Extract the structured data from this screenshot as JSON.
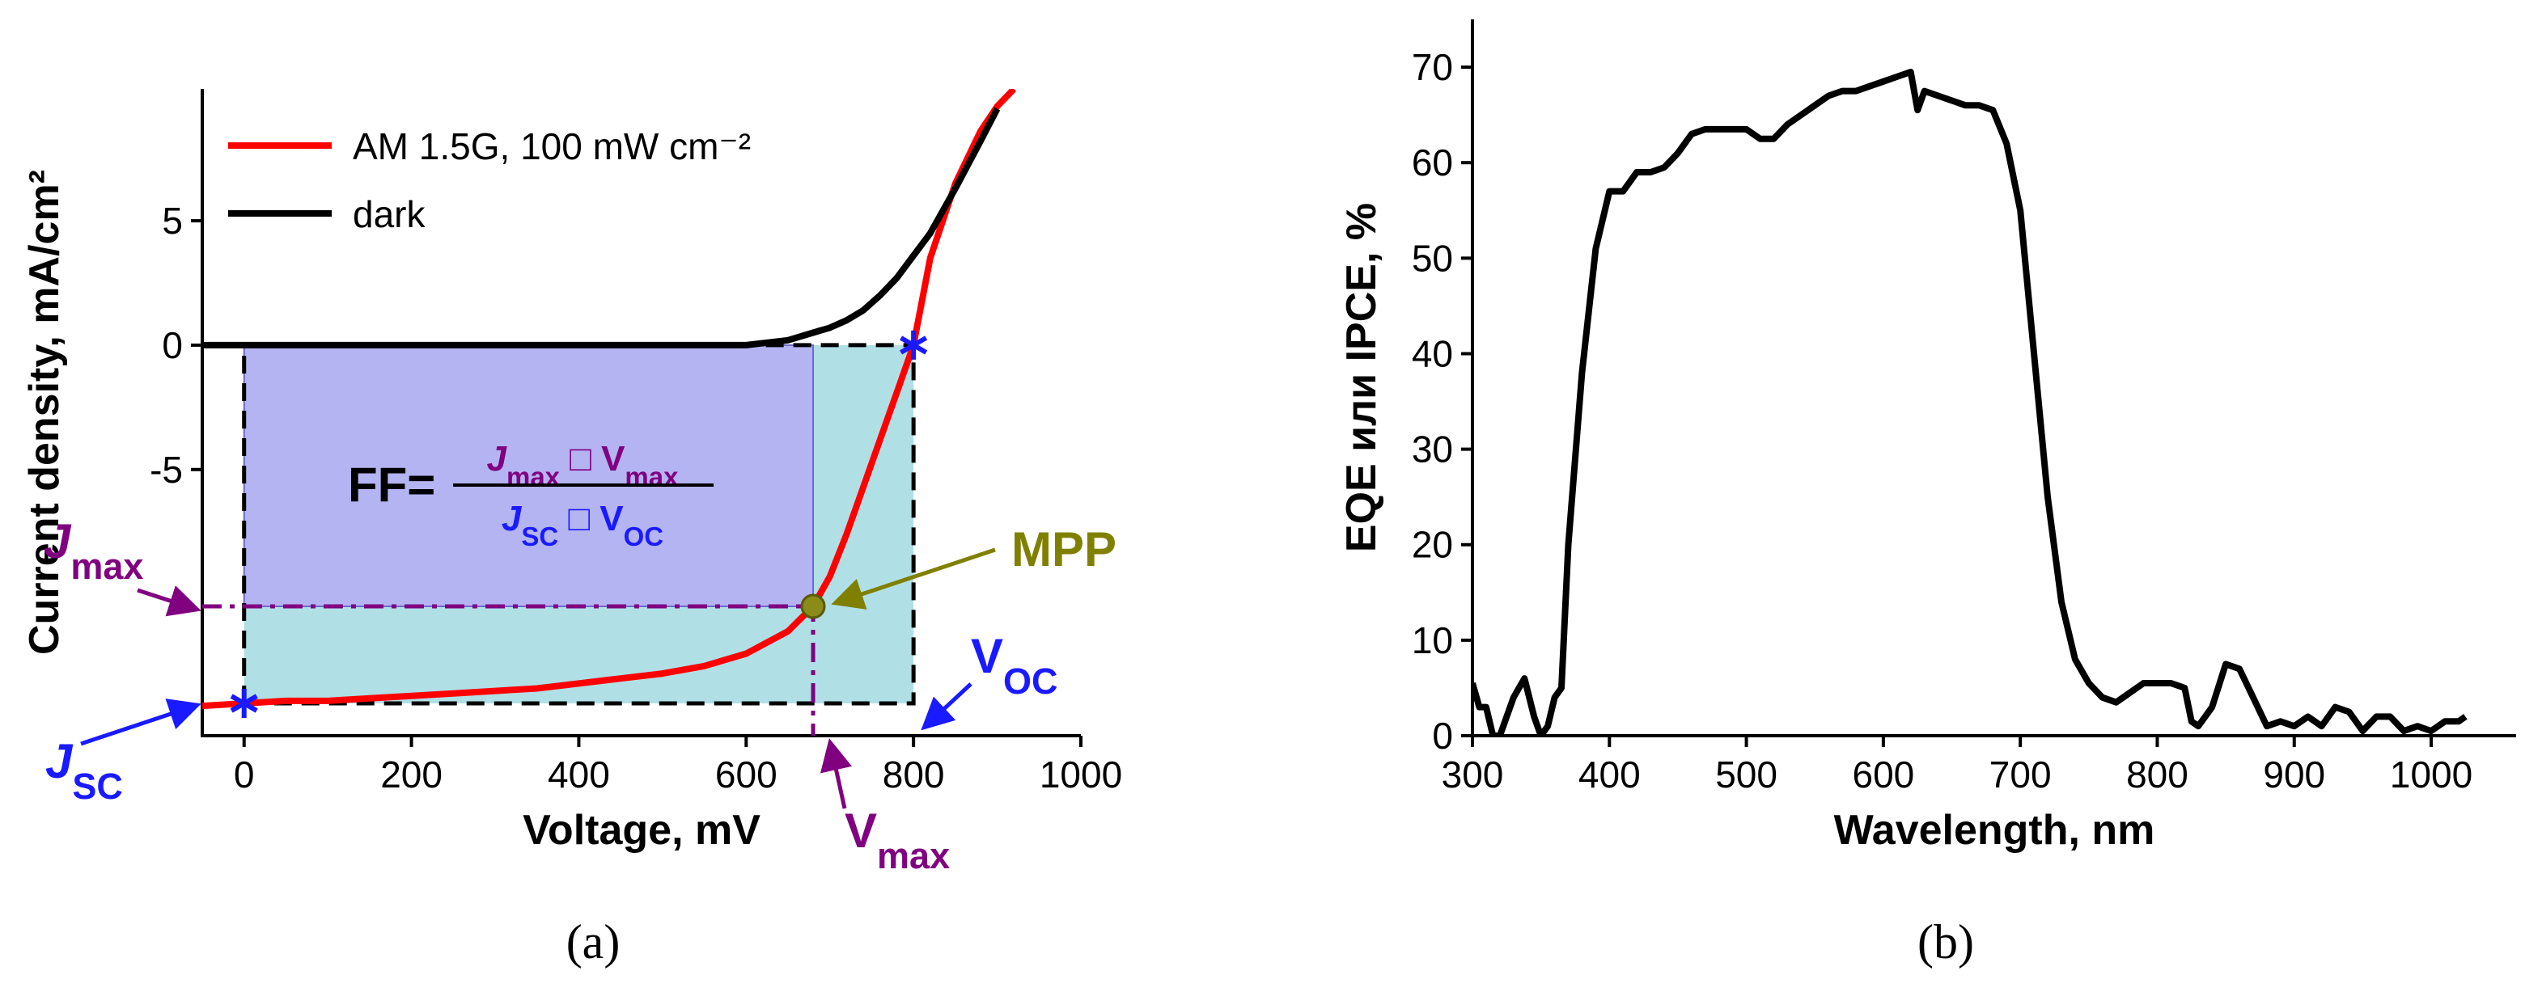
{
  "chart_data": [
    {
      "type": "line",
      "xlabel": "Voltage, mV",
      "ylabel": "Current density, mA/cm²",
      "panel": "(a)",
      "xlim": [
        -50,
        1000
      ],
      "xticks": [
        0,
        200,
        400,
        600,
        800,
        1000
      ],
      "ylim": [
        -15.7,
        10.3
      ],
      "yticks": [
        -5,
        0,
        5
      ],
      "legend": "top-left",
      "x": [
        -50,
        0,
        50,
        100,
        150,
        200,
        250,
        300,
        350,
        400,
        450,
        500,
        550,
        600,
        650,
        680,
        700,
        720,
        740,
        760,
        780,
        800,
        820,
        850,
        880,
        900,
        920
      ],
      "series": [
        {
          "name": "AM 1.5G, 100 mW cm⁻²",
          "color": "#ff0000",
          "values": [
            -14.5,
            -14.4,
            -14.3,
            -14.3,
            -14.2,
            -14.1,
            -14.0,
            -13.9,
            -13.8,
            -13.6,
            -13.4,
            -13.2,
            -12.9,
            -12.4,
            -11.5,
            -10.5,
            -9.3,
            -7.6,
            -5.7,
            -3.8,
            -1.9,
            0,
            3.5,
            6.5,
            8.6,
            9.6,
            10.3
          ]
        },
        {
          "name": "dark",
          "color": "#000000",
          "values": [
            0,
            0,
            0,
            0,
            0,
            0,
            0,
            0,
            0,
            0,
            0,
            0,
            0,
            0,
            0.2,
            0.5,
            0.7,
            1.0,
            1.4,
            2.0,
            2.7,
            3.6,
            4.5,
            6.3,
            8.2,
            9.5,
            null
          ]
        }
      ],
      "mpp": {
        "x": 680,
        "y": -10.5
      },
      "jsc": -14.4,
      "voc": 800,
      "annotations": {
        "jmax": {
          "text": "J",
          "sub": "max"
        },
        "jsc": {
          "text": "J",
          "sub": "SC"
        },
        "voc": {
          "text": "V",
          "sub": "OC"
        },
        "vmax": {
          "text": "V",
          "sub": "max"
        },
        "mpp": "MPP"
      },
      "formula": {
        "lhs": "FF=",
        "numerator": [
          {
            "text": "J",
            "sub": "max"
          },
          {
            "text": " □ V",
            "sub": "max"
          }
        ],
        "denominator": [
          {
            "text": "J",
            "sub": "SC"
          },
          {
            "text": " □ V",
            "sub": "OC"
          }
        ]
      }
    },
    {
      "type": "line",
      "xlabel": "Wavelength, nm",
      "ylabel": "EQE или IPCE, %",
      "panel": "(b)",
      "xlim": [
        300,
        1062
      ],
      "xticks": [
        300,
        400,
        500,
        600,
        700,
        800,
        900,
        1000
      ],
      "ylim": [
        0,
        75
      ],
      "yticks": [
        0,
        10,
        20,
        30,
        40,
        50,
        60,
        70
      ],
      "x": [
        300,
        305,
        310,
        315,
        320,
        330,
        338,
        345,
        350,
        355,
        360,
        365,
        370,
        380,
        390,
        400,
        410,
        420,
        430,
        440,
        450,
        460,
        470,
        480,
        490,
        500,
        510,
        520,
        530,
        540,
        550,
        560,
        570,
        580,
        590,
        600,
        610,
        620,
        625,
        630,
        640,
        650,
        660,
        670,
        680,
        690,
        700,
        710,
        720,
        730,
        740,
        750,
        760,
        770,
        780,
        790,
        800,
        810,
        820,
        825,
        830,
        840,
        850,
        860,
        870,
        880,
        890,
        900,
        910,
        920,
        930,
        940,
        950,
        960,
        970,
        980,
        990,
        1000,
        1010,
        1020,
        1025
      ],
      "series": [
        {
          "color": "#000000",
          "values": [
            5.5,
            3,
            3,
            0,
            0,
            4,
            6,
            2,
            0,
            1,
            4,
            5,
            20,
            38,
            51,
            57,
            57,
            59,
            59,
            59.5,
            61,
            63,
            63.5,
            63.5,
            63.5,
            63.5,
            62.5,
            62.5,
            64,
            65,
            66,
            67,
            67.5,
            67.5,
            68,
            68.5,
            69,
            69.5,
            65.5,
            67.5,
            67,
            66.5,
            66,
            66,
            65.5,
            62,
            55,
            40,
            25,
            14,
            8,
            5.5,
            4,
            3.5,
            4.5,
            5.5,
            5.5,
            5.5,
            5,
            1.5,
            1,
            3,
            7.5,
            7,
            4,
            1,
            1.5,
            1,
            2,
            1,
            3,
            2.5,
            0.5,
            2,
            2,
            0.5,
            1,
            0.5,
            1.5,
            1.5,
            2
          ]
        }
      ]
    }
  ]
}
